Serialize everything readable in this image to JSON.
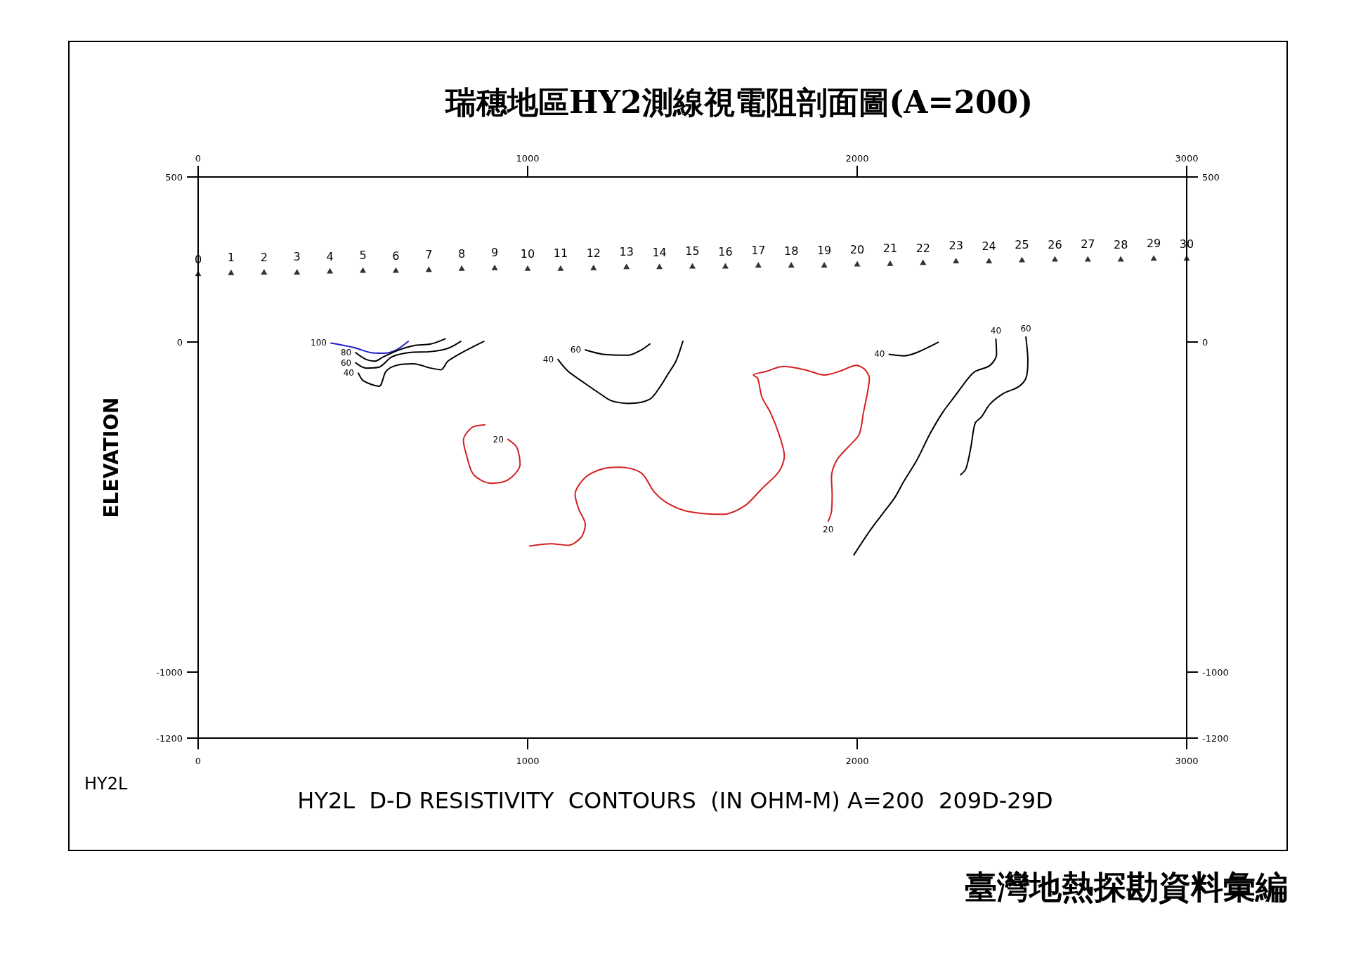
{
  "chart_data": {
    "type": "line",
    "title": "瑞穗地區HY2測線視電阻剖面圖(A=200)",
    "ylabel": "ELEVATION",
    "annotations": [
      "HY2L",
      "HY2L  D-D RESISTIVITY  CONTOURS  (IN OHM-M) A=200  209D-29D",
      "臺灣地熱探勘資料彙編",
      "0",
      "1",
      "2",
      "3",
      "4",
      "5",
      "6",
      "7",
      "8",
      "9",
      "10",
      "11",
      "12",
      "13",
      "14",
      "15",
      "16",
      "17",
      "18",
      "19",
      "20",
      "21",
      "22",
      "23",
      "24",
      "25",
      "26",
      "27",
      "28",
      "29",
      "30"
    ],
    "xlim": [
      0,
      3000
    ],
    "xticks": [
      0,
      1000,
      2000,
      3000
    ],
    "x2lim": [
      0,
      3000
    ],
    "x2ticks": [
      0,
      1000,
      2000,
      3000
    ],
    "ylim": [
      -1200,
      500
    ],
    "yticks": [
      500,
      0,
      -1000,
      -1200
    ],
    "y2lim": [
      -1200,
      500
    ],
    "y2ticks": [
      500,
      0,
      -1000,
      -1200
    ],
    "marker": "none",
    "series": [
      {
        "type": "scatter",
        "marker": "triangle",
        "color": "#000000",
        "x": [
          0,
          100,
          200,
          300,
          400,
          500,
          600,
          700,
          800,
          900,
          1000,
          1100,
          1200,
          1300,
          1400,
          1500,
          1600,
          1700,
          1800,
          1900,
          2000,
          2100,
          2200,
          2300,
          2400,
          2500,
          2600,
          2700,
          2800,
          2900,
          3000
        ],
        "values": [
          208,
          211,
          213,
          213,
          216,
          218,
          218,
          221,
          224,
          226,
          224,
          224,
          226,
          229,
          229,
          231,
          231,
          234,
          234,
          234,
          237,
          239,
          242,
          247,
          247,
          250,
          252,
          252,
          252,
          255,
          255
        ]
      },
      {
        "name": "100",
        "color": "#1f1fcc",
        "x": [
          403,
          470,
          523,
          562,
          601,
          638
        ],
        "values": [
          -3,
          -16,
          -32,
          -34,
          -24,
          2
        ]
      },
      {
        "name": "80",
        "color": "#000000",
        "x": [
          478,
          510,
          536,
          562,
          601,
          653,
          706,
          750
        ],
        "values": [
          -32,
          -53,
          -58,
          -45,
          -27,
          -11,
          -6,
          10
        ]
      },
      {
        "name": "60",
        "color": "#000000",
        "x": [
          478,
          510,
          549,
          588,
          640,
          706,
          758,
          797
        ],
        "values": [
          -63,
          -79,
          -76,
          -45,
          -32,
          -29,
          -19,
          2
        ]
      },
      {
        "name": "40",
        "color": "#000000",
        "x": [
          486,
          502,
          549,
          570,
          601,
          653,
          706,
          737,
          758,
          810,
          867
        ],
        "values": [
          -94,
          -118,
          -134,
          -89,
          -71,
          -66,
          -79,
          -84,
          -58,
          -27,
          2
        ]
      },
      {
        "name": "60",
        "color": "#000000",
        "x": [
          1175,
          1228,
          1306,
          1345,
          1371
        ],
        "values": [
          -24,
          -37,
          -40,
          -24,
          -6
        ]
      },
      {
        "name": "40",
        "color": "#000000",
        "x": [
          1092,
          1123,
          1175,
          1220,
          1254,
          1306,
          1371,
          1405,
          1424,
          1450,
          1471
        ],
        "values": [
          -53,
          -89,
          -126,
          -157,
          -178,
          -186,
          -173,
          -131,
          -100,
          -58,
          2
        ]
      },
      {
        "name": "20",
        "color": "#d42020",
        "x": [
          940,
          967,
          977,
          940,
          888,
          836,
          815,
          805,
          831,
          870
        ],
        "values": [
          -295,
          -319,
          -371,
          -418,
          -428,
          -402,
          -345,
          -298,
          -259,
          -251
        ]
      },
      {
        "name": "20",
        "color": "#d42020",
        "x": [
          1912,
          1922,
          1924,
          1922,
          1938,
          1972,
          2006,
          2019,
          2032,
          2037,
          2024,
          1998,
          1946,
          1901,
          1841,
          1776,
          1724,
          1685,
          1698,
          1711,
          1737,
          1763,
          1779,
          1763,
          1711,
          1659,
          1593,
          1489,
          1424,
          1384,
          1345,
          1280,
          1228,
          1175,
          1144,
          1155,
          1175,
          1162,
          1123,
          1071,
          1006
        ],
        "values": [
          -543,
          -514,
          -462,
          -410,
          -358,
          -319,
          -280,
          -214,
          -149,
          -110,
          -84,
          -71,
          -89,
          -100,
          -84,
          -74,
          -89,
          -100,
          -110,
          -167,
          -214,
          -280,
          -345,
          -392,
          -444,
          -496,
          -522,
          -514,
          -488,
          -454,
          -397,
          -379,
          -384,
          -410,
          -462,
          -506,
          -553,
          -592,
          -616,
          -611,
          -618
        ]
      },
      {
        "name": "40",
        "color": "#000000",
        "x": [
          2097,
          2141,
          2181,
          2246
        ],
        "values": [
          -37,
          -42,
          -32,
          -1
        ]
      },
      {
        "name": "40",
        "color": "#000000",
        "x": [
          2421,
          2423,
          2403,
          2358,
          2337,
          2298,
          2259,
          2220,
          2181,
          2141,
          2115,
          2076,
          2037,
          1990
        ],
        "values": [
          9,
          -37,
          -71,
          -89,
          -110,
          -162,
          -214,
          -280,
          -358,
          -423,
          -470,
          -522,
          -574,
          -645
        ]
      },
      {
        "name": "60",
        "color": "#000000",
        "x": [
          2512,
          2518,
          2512,
          2489,
          2442,
          2403,
          2377,
          2358,
          2345,
          2330,
          2314
        ],
        "values": [
          15,
          -58,
          -110,
          -136,
          -157,
          -188,
          -227,
          -246,
          -319,
          -384,
          -402
        ]
      }
    ]
  }
}
